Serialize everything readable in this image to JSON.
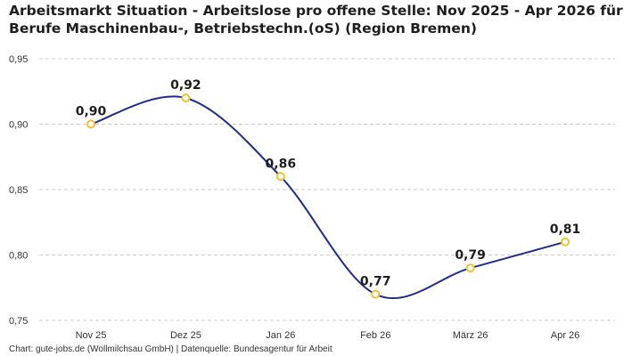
{
  "title_lines": [
    "Arbeitsmarkt Situation - Arbeitslose pro offene Stelle: Nov 2025 - Apr 2026 für",
    "Berufe Maschinenbau-, Betriebstechn.(oS) (Region Bremen)"
  ],
  "footer": "Chart: gute-jobs.de (Wollmilchsau GmbH) | Datenquelle: Bundesagentur für Arbeit",
  "colors": {
    "line": "#1f2d8c",
    "marker_stroke": "#f2c12e",
    "marker_fill": "#ffffff",
    "grid": "#cccccc",
    "text": "#222222"
  },
  "chart_data": {
    "type": "line",
    "title": "Arbeitsmarkt Situation - Arbeitslose pro offene Stelle: Nov 2025 - Apr 2026 für Berufe Maschinenbau-, Betriebstechn.(oS) (Region Bremen)",
    "categories": [
      "Nov 25",
      "Dez 25",
      "Jan 26",
      "Feb 26",
      "März 26",
      "Apr 26"
    ],
    "values": [
      0.9,
      0.92,
      0.86,
      0.77,
      0.79,
      0.81
    ],
    "data_labels": [
      "0,90",
      "0,92",
      "0,86",
      "0,77",
      "0,79",
      "0,81"
    ],
    "y_ticks": [
      0.75,
      0.8,
      0.85,
      0.9,
      0.95
    ],
    "y_tick_labels": [
      "0,75",
      "0,80",
      "0,85",
      "0,90",
      "0,95"
    ],
    "ylim": [
      0.75,
      0.95
    ],
    "xlabel": "",
    "ylabel": "",
    "grid": "horizontal dashed",
    "legend": "none",
    "curve": "smooth"
  }
}
